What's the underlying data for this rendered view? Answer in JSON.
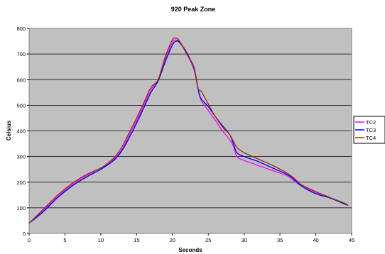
{
  "chart_data": {
    "type": "line",
    "title": "920 Peak Zone",
    "xlabel": "Seconds",
    "ylabel": "Celsius",
    "xlim": [
      0,
      45
    ],
    "ylim": [
      0,
      800
    ],
    "x_ticks": [
      0,
      5,
      10,
      15,
      20,
      25,
      30,
      35,
      40,
      45
    ],
    "y_ticks": [
      0,
      100,
      200,
      300,
      400,
      500,
      600,
      700,
      800
    ],
    "grid": "horizontal",
    "legend_position": "right",
    "background": "#c0c0c0",
    "series": [
      {
        "name": "TC2",
        "color": "#ff00ff",
        "points": [
          [
            0,
            40
          ],
          [
            2,
            90
          ],
          [
            4,
            145
          ],
          [
            6,
            190
          ],
          [
            8,
            225
          ],
          [
            10,
            255
          ],
          [
            11,
            270
          ],
          [
            12,
            295
          ],
          [
            13,
            330
          ],
          [
            14,
            385
          ],
          [
            15,
            440
          ],
          [
            16,
            500
          ],
          [
            17,
            560
          ],
          [
            18,
            600
          ],
          [
            19,
            680
          ],
          [
            20,
            745
          ],
          [
            20.5,
            755
          ],
          [
            21,
            745
          ],
          [
            22,
            700
          ],
          [
            23,
            640
          ],
          [
            23.6,
            560
          ],
          [
            24,
            520
          ],
          [
            25,
            480
          ],
          [
            26,
            440
          ],
          [
            27,
            400
          ],
          [
            28,
            365
          ],
          [
            28.5,
            340
          ],
          [
            29,
            300
          ],
          [
            30,
            285
          ],
          [
            32,
            265
          ],
          [
            34,
            245
          ],
          [
            36,
            225
          ],
          [
            37,
            205
          ],
          [
            38,
            185
          ],
          [
            40,
            160
          ],
          [
            42,
            140
          ],
          [
            44,
            115
          ],
          [
            44.5,
            110
          ]
        ]
      },
      {
        "name": "TC3",
        "color": "#0000ff",
        "points": [
          [
            0,
            40
          ],
          [
            2,
            85
          ],
          [
            4,
            140
          ],
          [
            6,
            185
          ],
          [
            8,
            220
          ],
          [
            10,
            250
          ],
          [
            11,
            268
          ],
          [
            12,
            290
          ],
          [
            13,
            325
          ],
          [
            14,
            375
          ],
          [
            15,
            430
          ],
          [
            16,
            490
          ],
          [
            17,
            550
          ],
          [
            18,
            595
          ],
          [
            19,
            670
          ],
          [
            20,
            735
          ],
          [
            20.5,
            750
          ],
          [
            21,
            745
          ],
          [
            22,
            705
          ],
          [
            23,
            645
          ],
          [
            23.6,
            560
          ],
          [
            24,
            525
          ],
          [
            25,
            495
          ],
          [
            26,
            455
          ],
          [
            27,
            420
          ],
          [
            28,
            385
          ],
          [
            28.5,
            350
          ],
          [
            29,
            315
          ],
          [
            30,
            300
          ],
          [
            32,
            280
          ],
          [
            34,
            255
          ],
          [
            36,
            230
          ],
          [
            37,
            210
          ],
          [
            38,
            185
          ],
          [
            40,
            155
          ],
          [
            42,
            138
          ],
          [
            44,
            115
          ],
          [
            44.5,
            110
          ]
        ]
      },
      {
        "name": "TC4",
        "color": "#993300",
        "points": [
          [
            0,
            40
          ],
          [
            2,
            95
          ],
          [
            4,
            150
          ],
          [
            6,
            195
          ],
          [
            8,
            230
          ],
          [
            10,
            255
          ],
          [
            11,
            275
          ],
          [
            12,
            300
          ],
          [
            13,
            340
          ],
          [
            14,
            395
          ],
          [
            15,
            450
          ],
          [
            16,
            510
          ],
          [
            17,
            570
          ],
          [
            18,
            600
          ],
          [
            19,
            690
          ],
          [
            20,
            755
          ],
          [
            20.5,
            762
          ],
          [
            21,
            750
          ],
          [
            22,
            700
          ],
          [
            23,
            650
          ],
          [
            23.6,
            565
          ],
          [
            24,
            555
          ],
          [
            25,
            505
          ],
          [
            26,
            455
          ],
          [
            27,
            415
          ],
          [
            28,
            385
          ],
          [
            28.5,
            360
          ],
          [
            29,
            335
          ],
          [
            30,
            315
          ],
          [
            32,
            290
          ],
          [
            34,
            265
          ],
          [
            36,
            235
          ],
          [
            37,
            215
          ],
          [
            38,
            190
          ],
          [
            40,
            163
          ],
          [
            42,
            140
          ],
          [
            44,
            118
          ],
          [
            44.5,
            110
          ]
        ]
      }
    ]
  }
}
